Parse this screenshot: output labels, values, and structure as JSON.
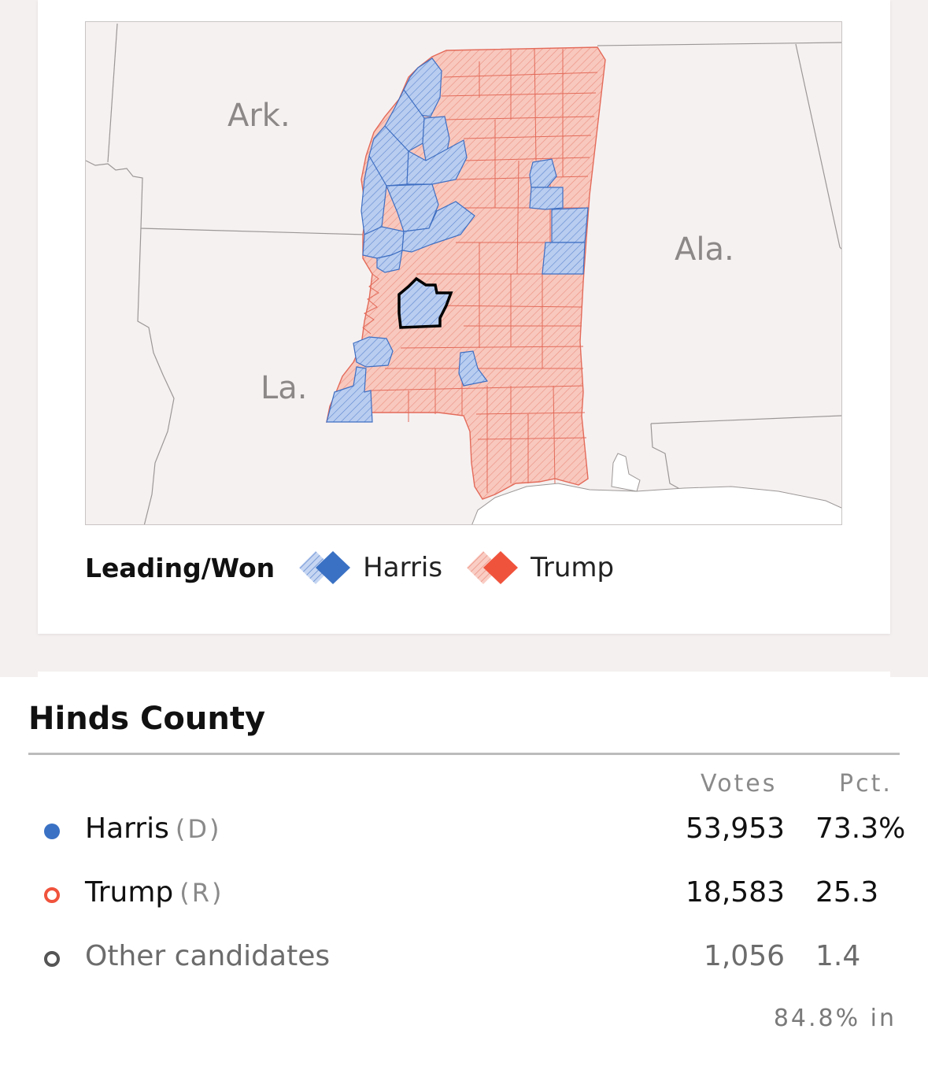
{
  "map": {
    "state_labels": {
      "arkansas": "Ark.",
      "alabama": "Ala.",
      "louisiana": "La."
    },
    "colors": {
      "harris_fill": "#b9cdf0",
      "harris_stroke": "#3f6fc2",
      "trump_fill": "#f8c2b8",
      "trump_stroke": "#e05a45",
      "background": "#f6f1f1",
      "water": "#ffffff",
      "highlight_outline": "#000000"
    },
    "highlighted_county": "Hinds County",
    "leader_in_highlighted_county": "Harris"
  },
  "legend": {
    "title": "Leading/Won",
    "items": [
      {
        "label": "Harris",
        "color": "#3a71c4"
      },
      {
        "label": "Trump",
        "color": "#f0533c"
      }
    ]
  },
  "results": {
    "county": "Hinds County",
    "headers": {
      "votes": "Votes",
      "pct": "Pct."
    },
    "rows": [
      {
        "name": "Harris",
        "party": "(D)",
        "votes": "53,953",
        "pct": "73.3%",
        "marker": "solid",
        "color": "#3a71c4"
      },
      {
        "name": "Trump",
        "party": "(R)",
        "votes": "18,583",
        "pct": "25.3",
        "marker": "ring",
        "color": "#f0533c"
      },
      {
        "name": "Other candidates",
        "party": "",
        "votes": "1,056",
        "pct": "1.4",
        "marker": "ring",
        "color": "#555555"
      }
    ],
    "reporting": "84.8% in"
  }
}
